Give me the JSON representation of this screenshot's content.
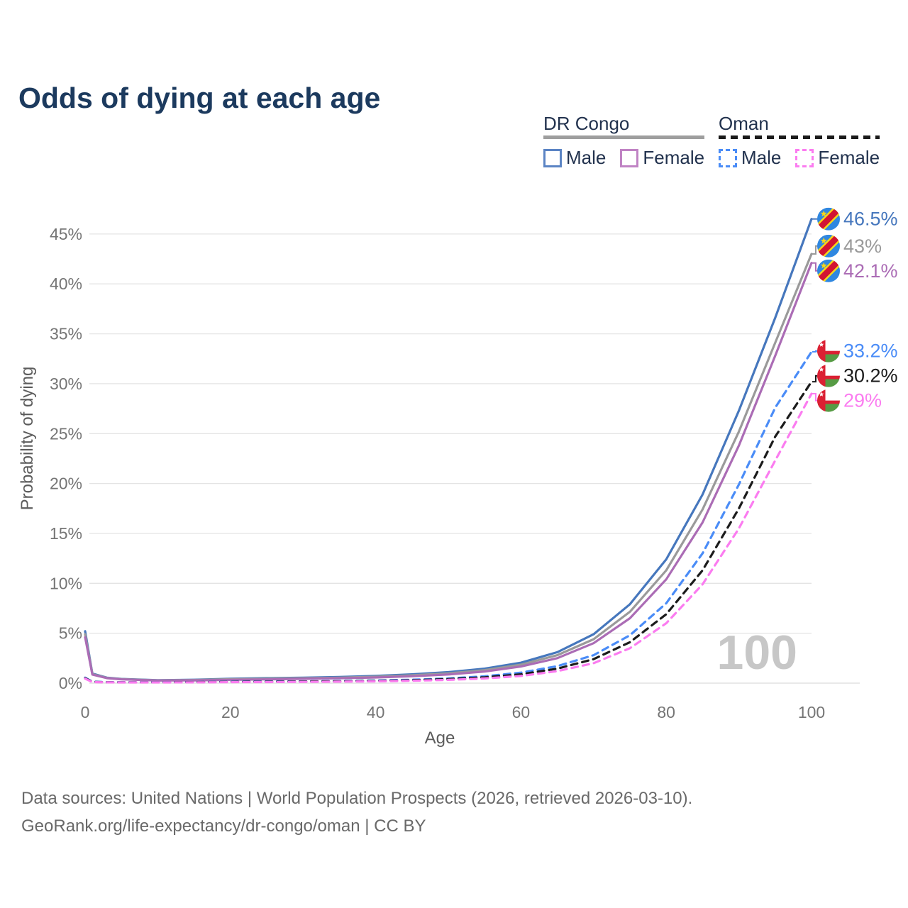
{
  "title": "Odds of dying at each age",
  "legend": {
    "groups": [
      {
        "name": "DR Congo",
        "line_style": "solid",
        "line_color": "#9e9e9e",
        "items": [
          {
            "label": "Male",
            "color": "#5b84c4",
            "style": "solid"
          },
          {
            "label": "Female",
            "color": "#c083c4",
            "style": "solid"
          }
        ]
      },
      {
        "name": "Oman",
        "line_style": "dashed",
        "line_color": "#1a1a1a",
        "items": [
          {
            "label": "Male",
            "color": "#4a8cf7",
            "style": "dashed"
          },
          {
            "label": "Female",
            "color": "#fb7cf0",
            "style": "dashed"
          }
        ]
      }
    ]
  },
  "chart_data": {
    "type": "line",
    "title": "Odds of dying at each age",
    "xlabel": "Age",
    "ylabel": "Probability of dying",
    "xlim": [
      0,
      100
    ],
    "ylim": [
      0,
      47
    ],
    "x_ticks": [
      0,
      20,
      40,
      60,
      80,
      100
    ],
    "y_ticks": [
      0,
      5,
      10,
      15,
      20,
      25,
      30,
      35,
      40,
      45
    ],
    "y_tick_suffix": "%",
    "grid": true,
    "legend_position": "top-right",
    "watermark": "100",
    "ages": [
      0,
      1,
      3,
      5,
      10,
      15,
      20,
      25,
      30,
      35,
      40,
      45,
      50,
      55,
      60,
      65,
      70,
      75,
      80,
      85,
      90,
      95,
      100
    ],
    "series": [
      {
        "name": "DR Congo Male",
        "country": "DR Congo",
        "sex": "Male",
        "style": "solid",
        "color": "#4677bd",
        "flag": "dr-congo",
        "end_label": "46.5%",
        "end_value": 46.5,
        "values": [
          5.2,
          0.95,
          0.55,
          0.42,
          0.3,
          0.34,
          0.44,
          0.5,
          0.55,
          0.62,
          0.72,
          0.88,
          1.1,
          1.45,
          2.05,
          3.1,
          4.9,
          7.9,
          12.4,
          18.9,
          27.3,
          36.6,
          46.5
        ]
      },
      {
        "name": "DR Congo Both sexes",
        "country": "DR Congo",
        "sex": "Both",
        "style": "solid",
        "color": "#9a9a9a",
        "flag": "dr-congo",
        "end_label": "43%",
        "end_value": 43,
        "values": [
          4.9,
          0.9,
          0.52,
          0.4,
          0.28,
          0.31,
          0.39,
          0.44,
          0.49,
          0.55,
          0.64,
          0.78,
          0.98,
          1.3,
          1.85,
          2.8,
          4.4,
          7.15,
          11.3,
          17.4,
          25.2,
          34.1,
          43.0
        ]
      },
      {
        "name": "DR Congo Female",
        "country": "DR Congo",
        "sex": "Female",
        "style": "solid",
        "color": "#ab6cb5",
        "flag": "dr-congo",
        "end_label": "42.1%",
        "end_value": 42.1,
        "values": [
          4.6,
          0.85,
          0.5,
          0.38,
          0.26,
          0.28,
          0.33,
          0.38,
          0.43,
          0.49,
          0.57,
          0.69,
          0.87,
          1.16,
          1.66,
          2.5,
          4.0,
          6.5,
          10.4,
          16.1,
          23.8,
          32.8,
          42.1
        ]
      },
      {
        "name": "Oman Male",
        "country": "Oman",
        "sex": "Male",
        "style": "dashed",
        "color": "#4a8cf7",
        "flag": "oman",
        "end_label": "33.2%",
        "end_value": 33.2,
        "values": [
          0.55,
          0.14,
          0.1,
          0.09,
          0.09,
          0.11,
          0.14,
          0.16,
          0.18,
          0.21,
          0.26,
          0.34,
          0.47,
          0.68,
          1.05,
          1.7,
          2.8,
          4.8,
          8.0,
          13.0,
          19.9,
          27.6,
          33.2
        ]
      },
      {
        "name": "Oman Both sexes",
        "country": "Oman",
        "sex": "Both",
        "style": "dashed",
        "color": "#1b1b1b",
        "flag": "oman",
        "end_label": "30.2%",
        "end_value": 30.2,
        "values": [
          0.5,
          0.12,
          0.09,
          0.08,
          0.08,
          0.1,
          0.12,
          0.14,
          0.16,
          0.18,
          0.22,
          0.29,
          0.4,
          0.58,
          0.88,
          1.45,
          2.4,
          4.1,
          6.9,
          11.3,
          17.5,
          24.7,
          30.2
        ]
      },
      {
        "name": "Oman Female",
        "country": "Oman",
        "sex": "Female",
        "style": "dashed",
        "color": "#fb7cf0",
        "flag": "oman",
        "end_label": "29%",
        "end_value": 29,
        "values": [
          0.45,
          0.11,
          0.08,
          0.07,
          0.07,
          0.08,
          0.1,
          0.11,
          0.13,
          0.15,
          0.18,
          0.24,
          0.33,
          0.47,
          0.72,
          1.2,
          2.0,
          3.5,
          6.0,
          9.9,
          15.5,
          22.3,
          29.0
        ]
      }
    ]
  },
  "flag_colors": {
    "dr_congo_blue": "#2f87e0",
    "dr_congo_red": "#d21333",
    "dr_congo_yellow": "#f7d618",
    "oman_red": "#db2033",
    "oman_green": "#569b44",
    "oman_white": "#ffffff"
  },
  "style_colors": {
    "title": "#1c3a5e",
    "tick_label": "#757575",
    "axis_title": "#5c5c5c",
    "gridline": "#e4e4e4",
    "axis_line": "#dcdcdc",
    "watermark": "#c7c7c7",
    "footer": "#696969"
  },
  "footer": {
    "line1": "Data sources: United Nations | World Population Prospects (2026, retrieved 2026-03-10).",
    "line2": "GeoRank.org/life-expectancy/dr-congo/oman | CC BY"
  }
}
